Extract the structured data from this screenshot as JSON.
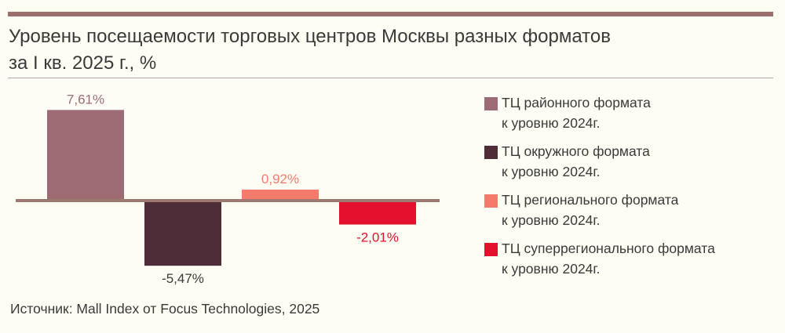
{
  "title_lines": [
    "Уровень посещаемости торговых центров Москвы разных форматов",
    "за I кв. 2025 г., %"
  ],
  "source": "Источник: Mall Index от Focus Technologies, 2025",
  "chart_data": {
    "type": "bar",
    "title": "Уровень посещаемости торговых центров Москвы разных форматов за I кв. 2025 г., %",
    "categories": [
      "ТЦ районного формата к уровню 2024г.",
      "ТЦ окружного формата к уровню 2024г.",
      "ТЦ регионального формата к уровню 2024г.",
      "ТЦ суперрегионального формата к уровню 2024г."
    ],
    "values": [
      7.61,
      -5.47,
      0.92,
      -2.01
    ],
    "value_labels": [
      "7,61%",
      "-5,47%",
      "0,92%",
      "-2,01%"
    ],
    "colors": [
      "#9c6c72",
      "#4f2d38",
      "#f47a6c",
      "#e3102e"
    ],
    "ylim": [
      -5.47,
      7.61
    ],
    "legend_position": "right",
    "grid": false
  },
  "legend": [
    {
      "line1": "ТЦ районного формата",
      "line2": "к уровню 2024г.",
      "color": "#9c6c72"
    },
    {
      "line1": "ТЦ окружного формата",
      "line2": "к уровню 2024г.",
      "color": "#4f2d38"
    },
    {
      "line1": "ТЦ регионального формата",
      "line2": "к уровню 2024г.",
      "color": "#f47a6c"
    },
    {
      "line1": "ТЦ суперрегионального формата",
      "line2": "к уровню 2024г.",
      "color": "#e3102e"
    }
  ]
}
